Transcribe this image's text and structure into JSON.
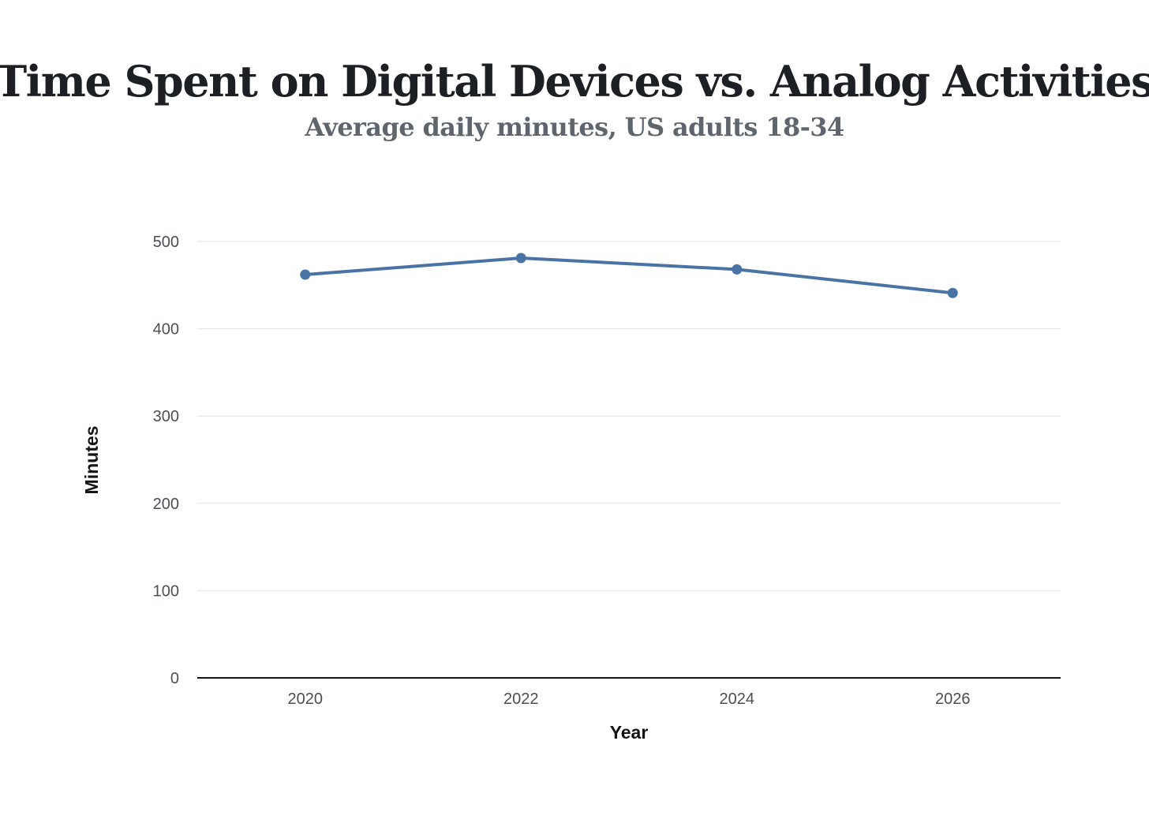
{
  "chart_data": {
    "type": "line",
    "title": "Time Spent on Digital Devices vs. Analog Activities",
    "subtitle": "Average daily minutes, US adults 18-34",
    "xlabel": "Year",
    "ylabel": "Minutes",
    "x": [
      "2020",
      "2022",
      "2024",
      "2026"
    ],
    "xlim": [
      2019,
      2027
    ],
    "ylim": [
      0,
      500
    ],
    "yticks": [
      0,
      100,
      200,
      300,
      400,
      500
    ],
    "grid": true,
    "series": [
      {
        "values": [
          462,
          481,
          468,
          441
        ],
        "color": "#4a73a5"
      }
    ]
  }
}
